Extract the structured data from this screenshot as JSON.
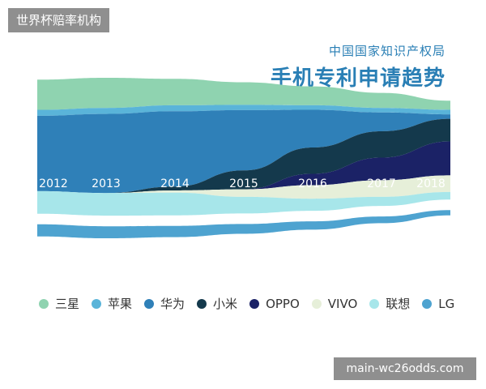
{
  "watermarks": {
    "top": "世界杯赔率机构",
    "bottom": "main-wc26odds.com"
  },
  "header": {
    "subtitle": "中国国家知识产权局",
    "title": "手机专利申请趋势"
  },
  "chart_data": {
    "type": "area",
    "subtype": "streamgraph",
    "x": [
      "2012",
      "2013",
      "2014",
      "2015",
      "2016",
      "2017",
      "2018"
    ],
    "series": [
      {
        "name": "三星",
        "color": "#8fd3b0",
        "values": [
          4,
          4,
          3.5,
          3,
          2.5,
          2,
          1.2
        ]
      },
      {
        "name": "苹果",
        "color": "#5ab4d9",
        "values": [
          0.8,
          0.8,
          0.8,
          0.7,
          0.6,
          0.6,
          0.6
        ]
      },
      {
        "name": "华为",
        "color": "#2f80b8",
        "values": [
          10,
          10.5,
          10,
          8,
          5,
          2.5,
          0.6
        ]
      },
      {
        "name": "小米",
        "color": "#14394c",
        "values": [
          0,
          0,
          0.5,
          2.5,
          3.5,
          3.5,
          3
        ]
      },
      {
        "name": "OPPO",
        "color": "#1b2266",
        "values": [
          0,
          0,
          0,
          0,
          1.5,
          3,
          4.5
        ]
      },
      {
        "name": "VIVO",
        "color": "#e6efd9",
        "values": [
          0,
          0,
          0.3,
          1,
          1.8,
          2.2,
          2.2
        ]
      },
      {
        "name": "联想",
        "color": "#a7e6ea",
        "values": [
          3,
          3,
          3,
          2.2,
          1.6,
          1.2,
          1
        ]
      },
      {
        "name": "LG",
        "color": "#4ea3d0",
        "values": [
          1.6,
          1.6,
          1.5,
          1.3,
          1.1,
          0.9,
          0.7
        ]
      }
    ],
    "gap_after_series": "联想",
    "gap_value": 1.4
  }
}
